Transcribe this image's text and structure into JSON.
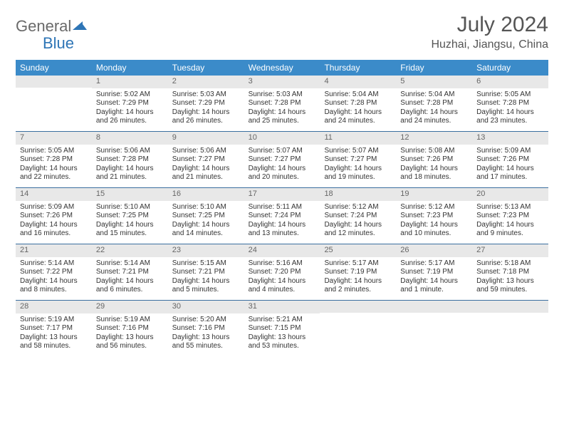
{
  "logo": {
    "text_a": "General",
    "text_b": "Blue"
  },
  "title": "July 2024",
  "location": "Huzhai, Jiangsu, China",
  "colors": {
    "header_bg": "#3b8bc9",
    "header_text": "#ffffff",
    "daynum_bg": "#e8e8e8",
    "daynum_text": "#666666",
    "body_text": "#333333",
    "rule": "#3b6fa0",
    "logo_gray": "#6a6a6a",
    "logo_blue": "#2e75b6",
    "title_color": "#555555"
  },
  "day_names": [
    "Sunday",
    "Monday",
    "Tuesday",
    "Wednesday",
    "Thursday",
    "Friday",
    "Saturday"
  ],
  "weeks": [
    [
      {
        "n": "",
        "lines": []
      },
      {
        "n": "1",
        "lines": [
          "Sunrise: 5:02 AM",
          "Sunset: 7:29 PM",
          "Daylight: 14 hours and 26 minutes."
        ]
      },
      {
        "n": "2",
        "lines": [
          "Sunrise: 5:03 AM",
          "Sunset: 7:29 PM",
          "Daylight: 14 hours and 26 minutes."
        ]
      },
      {
        "n": "3",
        "lines": [
          "Sunrise: 5:03 AM",
          "Sunset: 7:28 PM",
          "Daylight: 14 hours and 25 minutes."
        ]
      },
      {
        "n": "4",
        "lines": [
          "Sunrise: 5:04 AM",
          "Sunset: 7:28 PM",
          "Daylight: 14 hours and 24 minutes."
        ]
      },
      {
        "n": "5",
        "lines": [
          "Sunrise: 5:04 AM",
          "Sunset: 7:28 PM",
          "Daylight: 14 hours and 24 minutes."
        ]
      },
      {
        "n": "6",
        "lines": [
          "Sunrise: 5:05 AM",
          "Sunset: 7:28 PM",
          "Daylight: 14 hours and 23 minutes."
        ]
      }
    ],
    [
      {
        "n": "7",
        "lines": [
          "Sunrise: 5:05 AM",
          "Sunset: 7:28 PM",
          "Daylight: 14 hours and 22 minutes."
        ]
      },
      {
        "n": "8",
        "lines": [
          "Sunrise: 5:06 AM",
          "Sunset: 7:28 PM",
          "Daylight: 14 hours and 21 minutes."
        ]
      },
      {
        "n": "9",
        "lines": [
          "Sunrise: 5:06 AM",
          "Sunset: 7:27 PM",
          "Daylight: 14 hours and 21 minutes."
        ]
      },
      {
        "n": "10",
        "lines": [
          "Sunrise: 5:07 AM",
          "Sunset: 7:27 PM",
          "Daylight: 14 hours and 20 minutes."
        ]
      },
      {
        "n": "11",
        "lines": [
          "Sunrise: 5:07 AM",
          "Sunset: 7:27 PM",
          "Daylight: 14 hours and 19 minutes."
        ]
      },
      {
        "n": "12",
        "lines": [
          "Sunrise: 5:08 AM",
          "Sunset: 7:26 PM",
          "Daylight: 14 hours and 18 minutes."
        ]
      },
      {
        "n": "13",
        "lines": [
          "Sunrise: 5:09 AM",
          "Sunset: 7:26 PM",
          "Daylight: 14 hours and 17 minutes."
        ]
      }
    ],
    [
      {
        "n": "14",
        "lines": [
          "Sunrise: 5:09 AM",
          "Sunset: 7:26 PM",
          "Daylight: 14 hours and 16 minutes."
        ]
      },
      {
        "n": "15",
        "lines": [
          "Sunrise: 5:10 AM",
          "Sunset: 7:25 PM",
          "Daylight: 14 hours and 15 minutes."
        ]
      },
      {
        "n": "16",
        "lines": [
          "Sunrise: 5:10 AM",
          "Sunset: 7:25 PM",
          "Daylight: 14 hours and 14 minutes."
        ]
      },
      {
        "n": "17",
        "lines": [
          "Sunrise: 5:11 AM",
          "Sunset: 7:24 PM",
          "Daylight: 14 hours and 13 minutes."
        ]
      },
      {
        "n": "18",
        "lines": [
          "Sunrise: 5:12 AM",
          "Sunset: 7:24 PM",
          "Daylight: 14 hours and 12 minutes."
        ]
      },
      {
        "n": "19",
        "lines": [
          "Sunrise: 5:12 AM",
          "Sunset: 7:23 PM",
          "Daylight: 14 hours and 10 minutes."
        ]
      },
      {
        "n": "20",
        "lines": [
          "Sunrise: 5:13 AM",
          "Sunset: 7:23 PM",
          "Daylight: 14 hours and 9 minutes."
        ]
      }
    ],
    [
      {
        "n": "21",
        "lines": [
          "Sunrise: 5:14 AM",
          "Sunset: 7:22 PM",
          "Daylight: 14 hours and 8 minutes."
        ]
      },
      {
        "n": "22",
        "lines": [
          "Sunrise: 5:14 AM",
          "Sunset: 7:21 PM",
          "Daylight: 14 hours and 6 minutes."
        ]
      },
      {
        "n": "23",
        "lines": [
          "Sunrise: 5:15 AM",
          "Sunset: 7:21 PM",
          "Daylight: 14 hours and 5 minutes."
        ]
      },
      {
        "n": "24",
        "lines": [
          "Sunrise: 5:16 AM",
          "Sunset: 7:20 PM",
          "Daylight: 14 hours and 4 minutes."
        ]
      },
      {
        "n": "25",
        "lines": [
          "Sunrise: 5:17 AM",
          "Sunset: 7:19 PM",
          "Daylight: 14 hours and 2 minutes."
        ]
      },
      {
        "n": "26",
        "lines": [
          "Sunrise: 5:17 AM",
          "Sunset: 7:19 PM",
          "Daylight: 14 hours and 1 minute."
        ]
      },
      {
        "n": "27",
        "lines": [
          "Sunrise: 5:18 AM",
          "Sunset: 7:18 PM",
          "Daylight: 13 hours and 59 minutes."
        ]
      }
    ],
    [
      {
        "n": "28",
        "lines": [
          "Sunrise: 5:19 AM",
          "Sunset: 7:17 PM",
          "Daylight: 13 hours and 58 minutes."
        ]
      },
      {
        "n": "29",
        "lines": [
          "Sunrise: 5:19 AM",
          "Sunset: 7:16 PM",
          "Daylight: 13 hours and 56 minutes."
        ]
      },
      {
        "n": "30",
        "lines": [
          "Sunrise: 5:20 AM",
          "Sunset: 7:16 PM",
          "Daylight: 13 hours and 55 minutes."
        ]
      },
      {
        "n": "31",
        "lines": [
          "Sunrise: 5:21 AM",
          "Sunset: 7:15 PM",
          "Daylight: 13 hours and 53 minutes."
        ]
      },
      {
        "n": "",
        "lines": []
      },
      {
        "n": "",
        "lines": []
      },
      {
        "n": "",
        "lines": []
      }
    ]
  ]
}
